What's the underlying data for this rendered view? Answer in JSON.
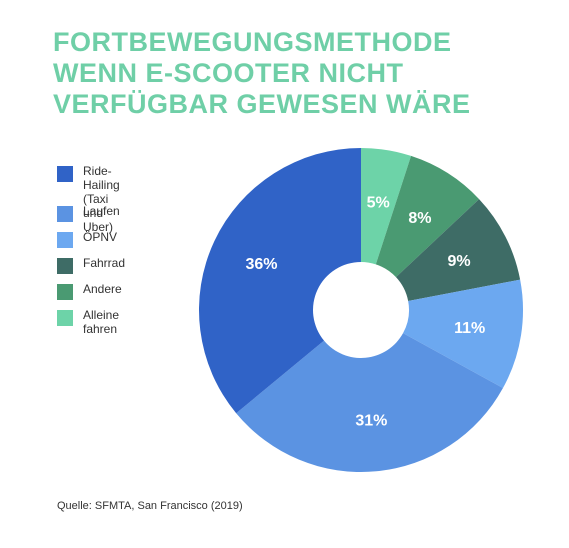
{
  "title_lines": [
    "FORTBEWEGUNGSMETHODE",
    "WENN E-SCOOTER NICHT",
    "VERFÜGBAR GEWESEN WÄRE"
  ],
  "source": "Quelle: SFMTA, San Francisco (2019)",
  "colors": {
    "title": "#6fcfa7"
  },
  "chart_data": {
    "type": "pie",
    "donut": true,
    "legend_placement": "left",
    "slices": [
      {
        "label": "Alleine fahren",
        "value": 5,
        "value_label": "5%",
        "color": "#6dd3a8"
      },
      {
        "label": "Andere",
        "value": 8,
        "value_label": "8%",
        "color": "#4a9a72"
      },
      {
        "label": "Fahrrad",
        "value": 9,
        "value_label": "9%",
        "color": "#3e6c66"
      },
      {
        "label": "ÖPNV",
        "value": 11,
        "value_label": "11%",
        "color": "#6ca8f0"
      },
      {
        "label": "Laufen",
        "value": 31,
        "value_label": "31%",
        "color": "#5b93e2"
      },
      {
        "label": "Ride-Hailing\n(Taxi und Uber)",
        "value": 36,
        "value_label": "36%",
        "color": "#3063c7"
      }
    ],
    "legend_order": [
      5,
      4,
      3,
      2,
      1,
      0
    ]
  }
}
